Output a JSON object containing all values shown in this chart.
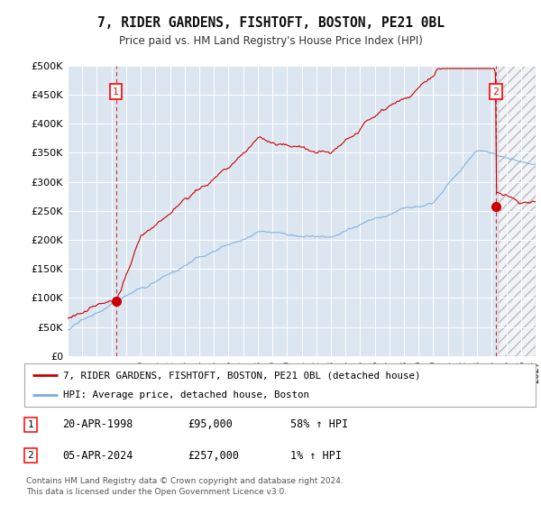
{
  "title": "7, RIDER GARDENS, FISHTOFT, BOSTON, PE21 0BL",
  "subtitle": "Price paid vs. HM Land Registry's House Price Index (HPI)",
  "background_color": "#dce6f1",
  "grid_color": "#ffffff",
  "red_line_color": "#cc0000",
  "blue_line_color": "#7aaddb",
  "ylim": [
    0,
    500000
  ],
  "yticks": [
    0,
    50000,
    100000,
    150000,
    200000,
    250000,
    300000,
    350000,
    400000,
    450000,
    500000
  ],
  "ytick_labels": [
    "£0",
    "£50K",
    "£100K",
    "£150K",
    "£200K",
    "£250K",
    "£300K",
    "£350K",
    "£400K",
    "£450K",
    "£500K"
  ],
  "sale1_x": 1998.3,
  "sale1_y": 95000,
  "sale2_x": 2024.27,
  "sale2_y": 257000,
  "legend_entry1": "7, RIDER GARDENS, FISHTOFT, BOSTON, PE21 0BL (detached house)",
  "legend_entry2": "HPI: Average price, detached house, Boston",
  "footer1": "Contains HM Land Registry data © Crown copyright and database right 2024.",
  "footer2": "This data is licensed under the Open Government Licence v3.0.",
  "table_row1": [
    "1",
    "20-APR-1998",
    "£95,000",
    "58% ↑ HPI"
  ],
  "table_row2": [
    "2",
    "05-APR-2024",
    "£257,000",
    "1% ↑ HPI"
  ],
  "xmin": 1995,
  "xmax": 2027,
  "hatch_start": 2024.5
}
